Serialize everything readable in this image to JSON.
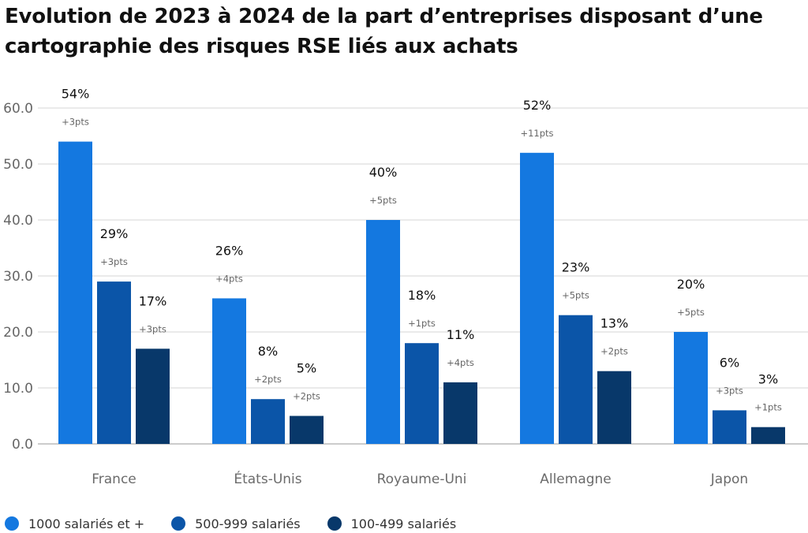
{
  "title": "Evolution de 2023 à 2024 de la part d’entreprises disposant d’une cartographie des risques RSE liés aux achats",
  "chart_data": {
    "type": "bar",
    "title": "Evolution de 2023 à 2024 de la part d’entreprises disposant d’une cartographie des risques RSE liés aux achats",
    "categories": [
      "France",
      "États-Unis",
      "Royaume-Uni",
      "Allemagne",
      "Japon"
    ],
    "series": [
      {
        "name": "1000 salariés et +",
        "color": "#1478e0",
        "values": [
          54,
          26,
          40,
          52,
          20
        ],
        "labels": [
          "54%",
          "26%",
          "40%",
          "52%",
          "20%"
        ],
        "deltas": [
          "+3pts",
          "+4pts",
          "+5pts",
          "+11pts",
          "+5pts"
        ]
      },
      {
        "name": "500-999 salariés",
        "color": "#0b55a8",
        "values": [
          29,
          8,
          18,
          23,
          6
        ],
        "labels": [
          "29%",
          "8%",
          "18%",
          "23%",
          "6%"
        ],
        "deltas": [
          "+3pts",
          "+2pts",
          "+1pts",
          "+5pts",
          "+3pts"
        ]
      },
      {
        "name": "100-499 salariés",
        "color": "#08386a",
        "values": [
          17,
          5,
          11,
          13,
          3
        ],
        "labels": [
          "17%",
          "5%",
          "11%",
          "13%",
          "3%"
        ],
        "deltas": [
          "+3pts",
          "+2pts",
          "+4pts",
          "+2pts",
          "+1pts"
        ]
      }
    ],
    "yticks": [
      "0.0",
      "10.0",
      "20.0",
      "30.0",
      "40.0",
      "50.0",
      "60.0"
    ],
    "ylim": [
      0,
      60
    ],
    "grid": true,
    "legend": "bottom"
  }
}
